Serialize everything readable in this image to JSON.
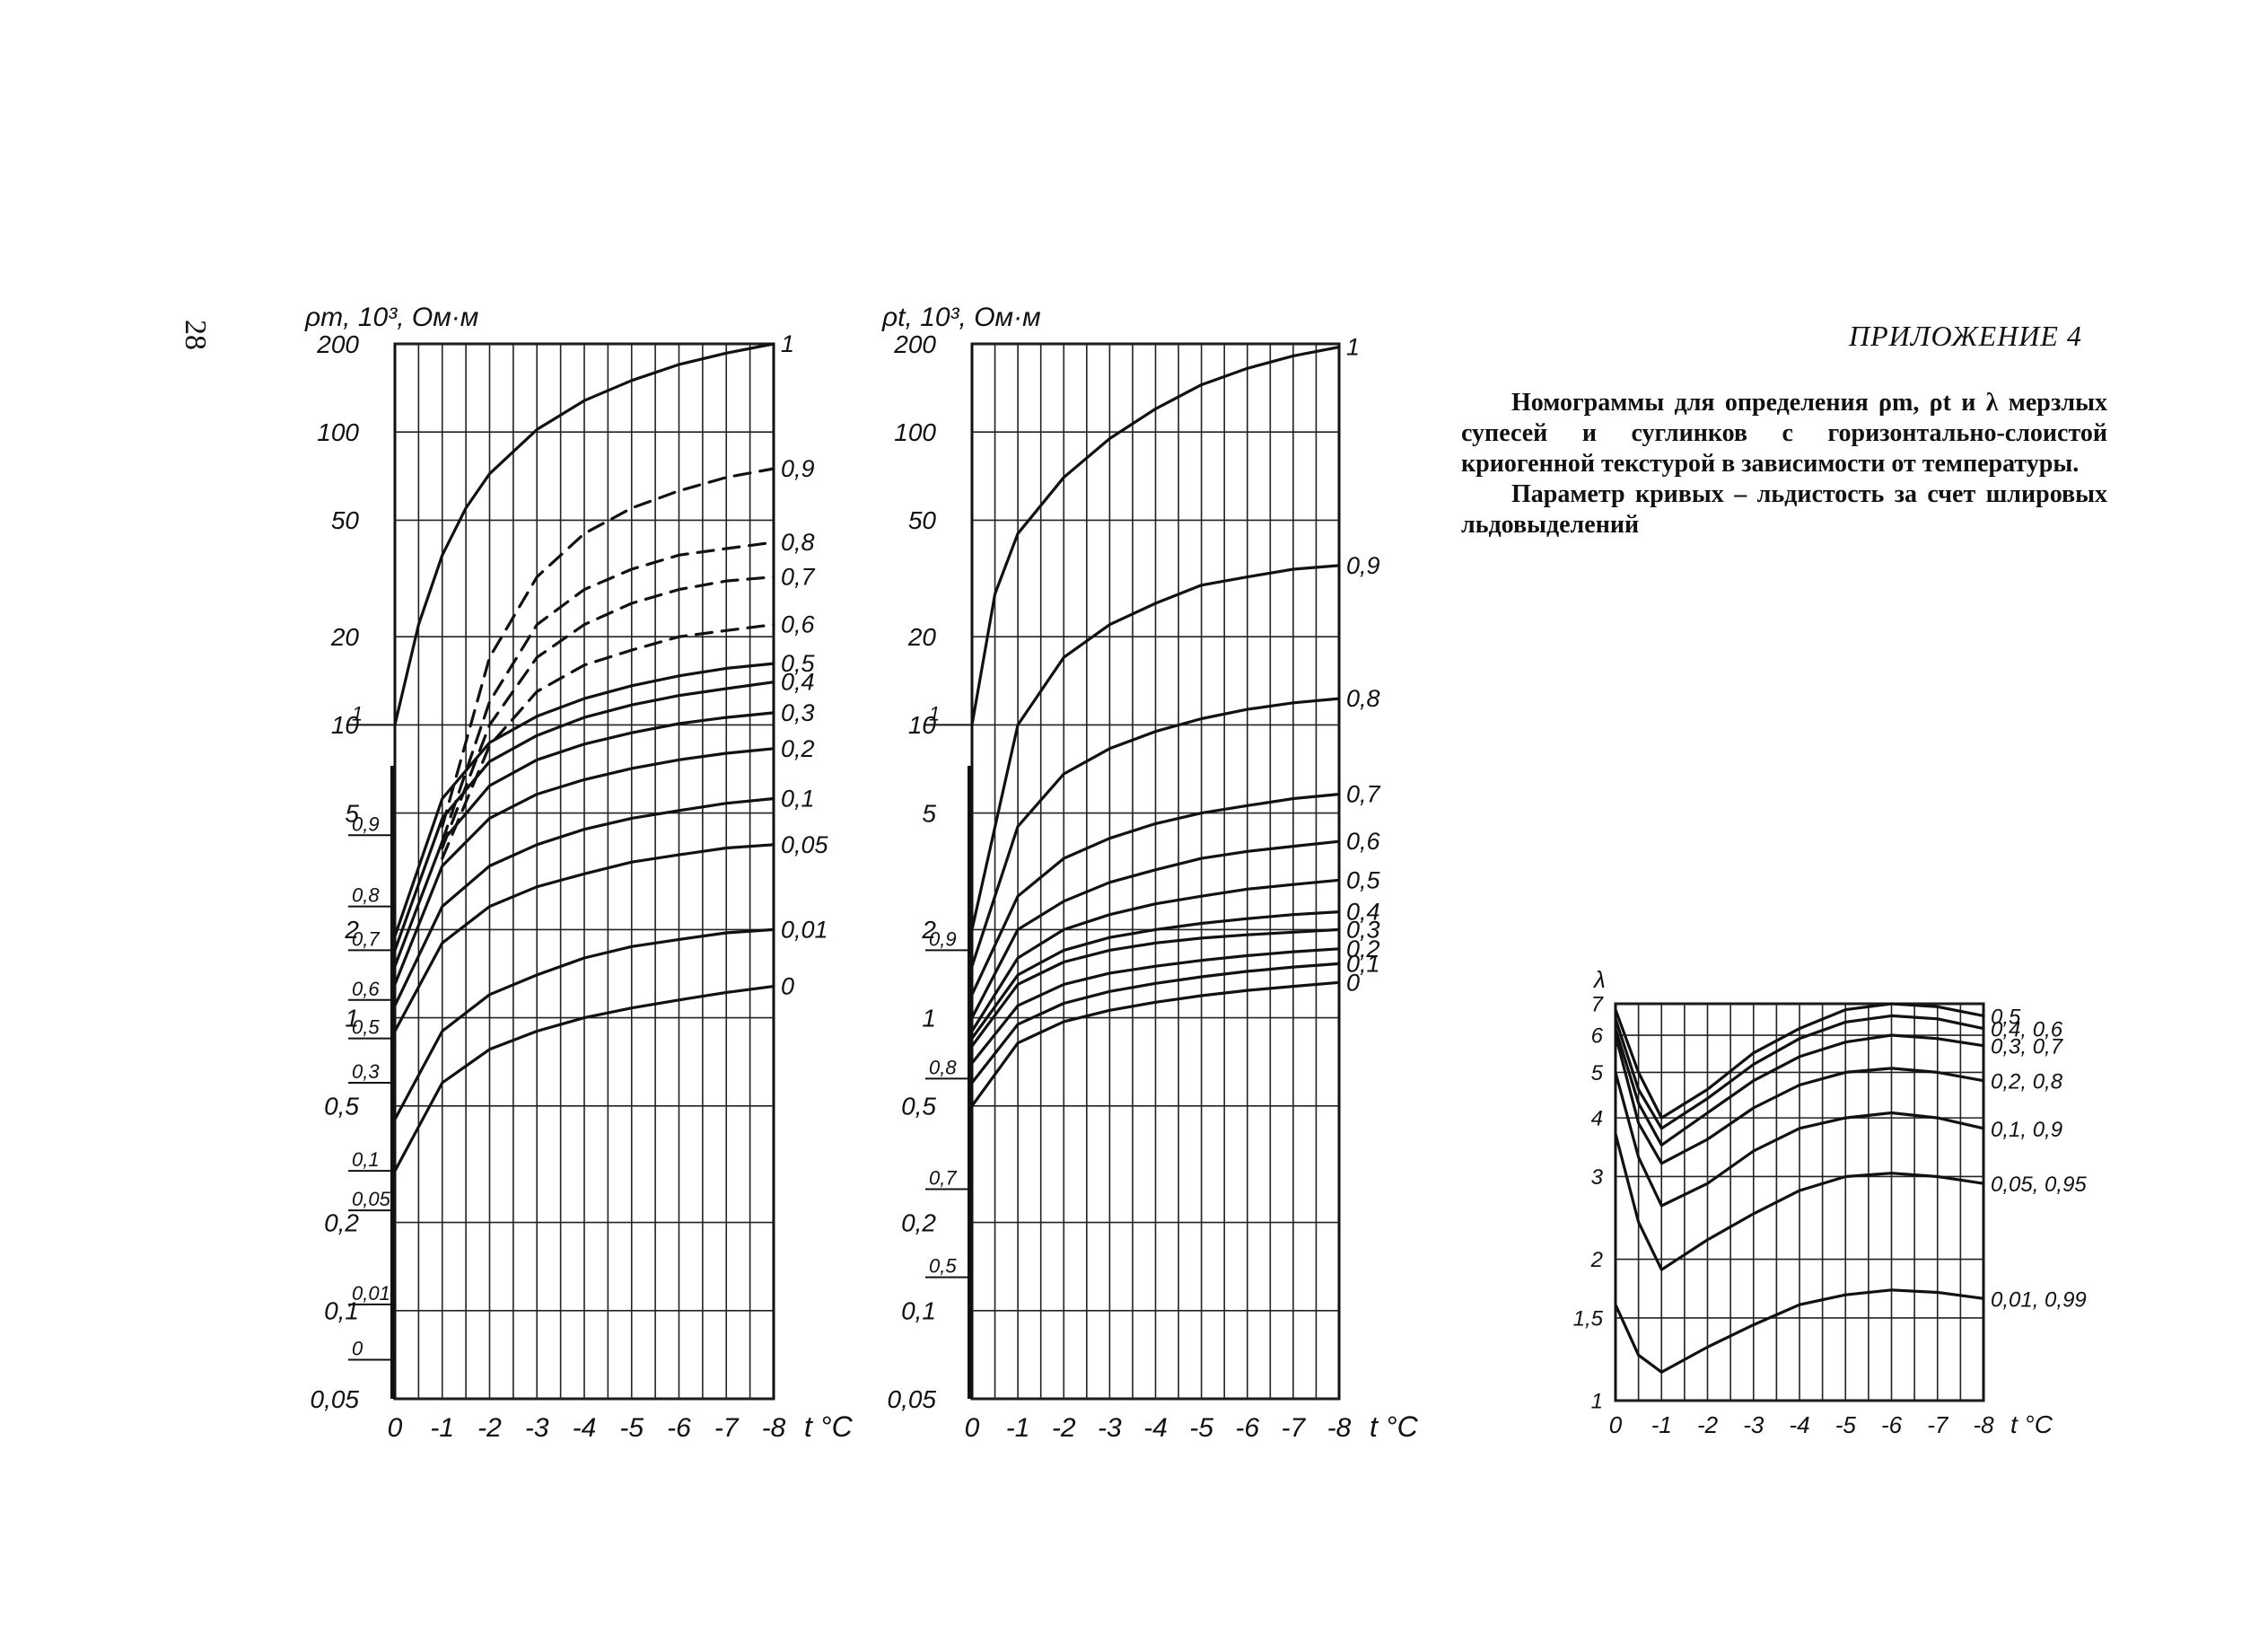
{
  "page_number": "28",
  "appendix_title": "ПРИЛОЖЕНИЕ 4",
  "caption": {
    "paragraph1": "Номограммы для определения ρm, ρt и λ мерзлых супесей и суглинков с горизонтально-слоистой криогенной текстурой в зависимости от температуры.",
    "paragraph2": "Параметр кривых – льдистость за счет шлировых льдовыделений"
  },
  "chart_data": [
    {
      "type": "line",
      "ylabel": "ρm, 10³, Ом·м",
      "xlabel": "t °C",
      "yscale": "log",
      "ylim": [
        0.05,
        200
      ],
      "xlim": [
        0,
        -8
      ],
      "x_ticks": [
        "0",
        "-1",
        "-2",
        "-3",
        "-4",
        "-5",
        "-6",
        "-7",
        "-8"
      ],
      "y_ticks": [
        {
          "v": 200,
          "t": "200"
        },
        {
          "v": 100,
          "t": "100"
        },
        {
          "v": 50,
          "t": "50"
        },
        {
          "v": 20,
          "t": "20"
        },
        {
          "v": 10,
          "t": "10"
        },
        {
          "v": 5,
          "t": "5"
        },
        {
          "v": 2,
          "t": "2"
        },
        {
          "v": 1,
          "t": "1"
        },
        {
          "v": 0.5,
          "t": "0,5"
        },
        {
          "v": 0.2,
          "t": "0,2"
        },
        {
          "v": 0.1,
          "t": "0,1"
        },
        {
          "v": 0.05,
          "t": "0,05"
        }
      ],
      "left_scale": [
        {
          "v": 10,
          "t": "1"
        },
        {
          "v": 4.2,
          "t": "0,9"
        },
        {
          "v": 2.4,
          "t": "0,8"
        },
        {
          "v": 1.7,
          "t": "0,7"
        },
        {
          "v": 1.15,
          "t": "0,6"
        },
        {
          "v": 0.85,
          "t": "0,5"
        },
        {
          "v": 0.6,
          "t": "0,3"
        },
        {
          "v": 0.3,
          "t": "0,1"
        },
        {
          "v": 0.22,
          "t": "0,05"
        },
        {
          "v": 0.105,
          "t": "0,01"
        },
        {
          "v": 0.068,
          "t": "0"
        }
      ],
      "series": [
        {
          "name": "1",
          "dashed": false,
          "x": [
            0,
            -0.5,
            -1,
            -1.5,
            -2,
            -3,
            -4,
            -5,
            -6,
            -7,
            -8
          ],
          "y": [
            10,
            22,
            38,
            55,
            72,
            102,
            128,
            150,
            170,
            186,
            200
          ]
        },
        {
          "name": "0,9",
          "dashed": true,
          "x": [
            -1,
            -2,
            -3,
            -4,
            -5,
            -6,
            -7,
            -8
          ],
          "y": [
            4.5,
            17,
            32,
            45,
            55,
            63,
            70,
            75
          ]
        },
        {
          "name": "0,8",
          "dashed": true,
          "x": [
            -1,
            -2,
            -3,
            -4,
            -5,
            -6,
            -7,
            -8
          ],
          "y": [
            4,
            12,
            22,
            29,
            34,
            38,
            40,
            42
          ]
        },
        {
          "name": "0,7",
          "dashed": true,
          "x": [
            -1,
            -2,
            -3,
            -4,
            -5,
            -6,
            -7,
            -8
          ],
          "y": [
            3.8,
            10,
            17,
            22,
            26,
            29,
            31,
            32
          ]
        },
        {
          "name": "0,6",
          "dashed": true,
          "x": [
            -1,
            -2,
            -3,
            -4,
            -5,
            -6,
            -7,
            -8
          ],
          "y": [
            3.5,
            8.5,
            13,
            16,
            18,
            20,
            21,
            22
          ]
        },
        {
          "name": "0,5",
          "dashed": false,
          "x": [
            0,
            -1,
            -2,
            -3,
            -4,
            -5,
            -6,
            -7,
            -8
          ],
          "y": [
            1.9,
            5.6,
            8.7,
            10.7,
            12.3,
            13.6,
            14.7,
            15.6,
            16.2
          ]
        },
        {
          "name": "0,4",
          "dashed": false,
          "x": [
            0,
            -1,
            -2,
            -3,
            -4,
            -5,
            -6,
            -7,
            -8
          ],
          "y": [
            1.7,
            4.8,
            7.5,
            9.2,
            10.6,
            11.7,
            12.6,
            13.3,
            14
          ]
        },
        {
          "name": "0,3",
          "dashed": false,
          "x": [
            0,
            -1,
            -2,
            -3,
            -4,
            -5,
            -6,
            -7,
            -8
          ],
          "y": [
            1.5,
            4.0,
            6.2,
            7.6,
            8.6,
            9.4,
            10.1,
            10.6,
            11
          ]
        },
        {
          "name": "0,2",
          "dashed": false,
          "x": [
            0,
            -1,
            -2,
            -3,
            -4,
            -5,
            -6,
            -7,
            -8
          ],
          "y": [
            1.3,
            3.3,
            4.8,
            5.8,
            6.5,
            7.1,
            7.6,
            8.0,
            8.3
          ]
        },
        {
          "name": "0,1",
          "dashed": false,
          "x": [
            0,
            -1,
            -2,
            -3,
            -4,
            -5,
            -6,
            -7,
            -8
          ],
          "y": [
            1.1,
            2.4,
            3.3,
            3.9,
            4.4,
            4.8,
            5.1,
            5.4,
            5.6
          ]
        },
        {
          "name": "0,05",
          "dashed": false,
          "x": [
            0,
            -1,
            -2,
            -3,
            -4,
            -5,
            -6,
            -7,
            -8
          ],
          "y": [
            0.9,
            1.8,
            2.4,
            2.8,
            3.1,
            3.4,
            3.6,
            3.8,
            3.9
          ]
        },
        {
          "name": "0,01",
          "dashed": false,
          "x": [
            0,
            -1,
            -2,
            -3,
            -4,
            -5,
            -6,
            -7,
            -8
          ],
          "y": [
            0.45,
            0.9,
            1.2,
            1.4,
            1.6,
            1.75,
            1.85,
            1.95,
            2.0
          ]
        },
        {
          "name": "0",
          "dashed": false,
          "x": [
            0,
            -1,
            -2,
            -3,
            -4,
            -5,
            -6,
            -7,
            -8
          ],
          "y": [
            0.3,
            0.6,
            0.78,
            0.9,
            1.0,
            1.08,
            1.15,
            1.22,
            1.28
          ]
        }
      ]
    },
    {
      "type": "line",
      "ylabel": "ρt, 10³, Ом·м",
      "xlabel": "t °C",
      "yscale": "log",
      "ylim": [
        0.05,
        200
      ],
      "xlim": [
        0,
        -8
      ],
      "x_ticks": [
        "0",
        "-1",
        "-2",
        "-3",
        "-4",
        "-5",
        "-6",
        "-7",
        "-8"
      ],
      "y_ticks": [
        {
          "v": 200,
          "t": "200"
        },
        {
          "v": 100,
          "t": "100"
        },
        {
          "v": 50,
          "t": "50"
        },
        {
          "v": 20,
          "t": "20"
        },
        {
          "v": 10,
          "t": "10"
        },
        {
          "v": 5,
          "t": "5"
        },
        {
          "v": 2,
          "t": "2"
        },
        {
          "v": 1,
          "t": "1"
        },
        {
          "v": 0.5,
          "t": "0,5"
        },
        {
          "v": 0.2,
          "t": "0,2"
        },
        {
          "v": 0.1,
          "t": "0,1"
        },
        {
          "v": 0.05,
          "t": "0,05"
        }
      ],
      "left_scale": [
        {
          "v": 10,
          "t": "1"
        },
        {
          "v": 1.7,
          "t": "0,9"
        },
        {
          "v": 0.62,
          "t": "0,8"
        },
        {
          "v": 0.26,
          "t": "0,7"
        },
        {
          "v": 0.13,
          "t": "0,5"
        }
      ],
      "series": [
        {
          "name": "1",
          "dashed": false,
          "x": [
            0,
            -0.5,
            -1,
            -2,
            -3,
            -4,
            -5,
            -6,
            -7,
            -8
          ],
          "y": [
            10,
            28,
            45,
            70,
            95,
            120,
            145,
            165,
            182,
            195
          ]
        },
        {
          "name": "0,9",
          "dashed": false,
          "x": [
            0,
            -1,
            -2,
            -3,
            -4,
            -5,
            -6,
            -7,
            -8
          ],
          "y": [
            2,
            10,
            17,
            22,
            26,
            30,
            32,
            34,
            35
          ]
        },
        {
          "name": "0,8",
          "dashed": false,
          "x": [
            0,
            -1,
            -2,
            -3,
            -4,
            -5,
            -6,
            -7,
            -8
          ],
          "y": [
            1.5,
            4.5,
            6.8,
            8.3,
            9.5,
            10.5,
            11.3,
            11.9,
            12.3
          ]
        },
        {
          "name": "0,7",
          "dashed": false,
          "x": [
            0,
            -1,
            -2,
            -3,
            -4,
            -5,
            -6,
            -7,
            -8
          ],
          "y": [
            1.2,
            2.6,
            3.5,
            4.1,
            4.6,
            5.0,
            5.3,
            5.6,
            5.8
          ]
        },
        {
          "name": "0,6",
          "dashed": false,
          "x": [
            0,
            -1,
            -2,
            -3,
            -4,
            -5,
            -6,
            -7,
            -8
          ],
          "y": [
            1.0,
            2.0,
            2.5,
            2.9,
            3.2,
            3.5,
            3.7,
            3.85,
            4.0
          ]
        },
        {
          "name": "0,5",
          "dashed": false,
          "x": [
            0,
            -1,
            -2,
            -3,
            -4,
            -5,
            -6,
            -7,
            -8
          ],
          "y": [
            0.9,
            1.6,
            2.0,
            2.25,
            2.45,
            2.6,
            2.75,
            2.85,
            2.95
          ]
        },
        {
          "name": "0,4",
          "dashed": false,
          "x": [
            0,
            -1,
            -2,
            -3,
            -4,
            -5,
            -6,
            -7,
            -8
          ],
          "y": [
            0.85,
            1.4,
            1.7,
            1.88,
            2.0,
            2.1,
            2.18,
            2.25,
            2.3
          ]
        },
        {
          "name": "0,3",
          "dashed": false,
          "x": [
            0,
            -1,
            -2,
            -3,
            -4,
            -5,
            -6,
            -7,
            -8
          ],
          "y": [
            0.8,
            1.3,
            1.55,
            1.7,
            1.8,
            1.87,
            1.92,
            1.96,
            2.0
          ]
        },
        {
          "name": "0,2",
          "dashed": false,
          "x": [
            0,
            -1,
            -2,
            -3,
            -4,
            -5,
            -6,
            -7,
            -8
          ],
          "y": [
            0.7,
            1.1,
            1.3,
            1.42,
            1.5,
            1.57,
            1.63,
            1.68,
            1.72
          ]
        },
        {
          "name": "0,1",
          "dashed": false,
          "x": [
            0,
            -1,
            -2,
            -3,
            -4,
            -5,
            -6,
            -7,
            -8
          ],
          "y": [
            0.6,
            0.95,
            1.12,
            1.23,
            1.31,
            1.38,
            1.44,
            1.49,
            1.53
          ]
        },
        {
          "name": "0",
          "dashed": false,
          "x": [
            0,
            -1,
            -2,
            -3,
            -4,
            -5,
            -6,
            -7,
            -8
          ],
          "y": [
            0.5,
            0.82,
            0.97,
            1.06,
            1.13,
            1.19,
            1.24,
            1.28,
            1.32
          ]
        }
      ]
    },
    {
      "type": "line",
      "ylabel": "λ",
      "xlabel": "t °C",
      "yscale": "log",
      "ylim": [
        1,
        7
      ],
      "xlim": [
        0,
        -8
      ],
      "x_ticks": [
        "0",
        "-1",
        "-2",
        "-3",
        "-4",
        "-5",
        "-6",
        "-7",
        "-8"
      ],
      "y_ticks": [
        {
          "v": 7,
          "t": "7"
        },
        {
          "v": 6,
          "t": "6"
        },
        {
          "v": 5,
          "t": "5"
        },
        {
          "v": 4,
          "t": "4"
        },
        {
          "v": 3,
          "t": "3"
        },
        {
          "v": 2,
          "t": "2"
        },
        {
          "v": 1.5,
          "t": "1,5"
        },
        {
          "v": 1,
          "t": "1"
        }
      ],
      "series": [
        {
          "name": "0,5",
          "dashed": false,
          "x": [
            0,
            -0.5,
            -1,
            -2,
            -3,
            -4,
            -5,
            -6,
            -7,
            -8
          ],
          "y": [
            6.8,
            5.0,
            4.0,
            4.6,
            5.5,
            6.2,
            6.8,
            7.0,
            6.9,
            6.6
          ]
        },
        {
          "name": "0,4, 0,6",
          "dashed": false,
          "x": [
            0,
            -0.5,
            -1,
            -2,
            -3,
            -4,
            -5,
            -6,
            -7,
            -8
          ],
          "y": [
            6.5,
            4.6,
            3.8,
            4.4,
            5.2,
            5.9,
            6.4,
            6.6,
            6.5,
            6.2
          ]
        },
        {
          "name": "0,3, 0,7",
          "dashed": false,
          "x": [
            0,
            -0.5,
            -1,
            -2,
            -3,
            -4,
            -5,
            -6,
            -7,
            -8
          ],
          "y": [
            6.2,
            4.3,
            3.5,
            4.1,
            4.8,
            5.4,
            5.8,
            6.0,
            5.9,
            5.7
          ]
        },
        {
          "name": "0,2, 0,8",
          "dashed": false,
          "x": [
            0,
            -0.5,
            -1,
            -2,
            -3,
            -4,
            -5,
            -6,
            -7,
            -8
          ],
          "y": [
            6.0,
            3.9,
            3.2,
            3.6,
            4.2,
            4.7,
            5.0,
            5.1,
            5.0,
            4.8
          ]
        },
        {
          "name": "0,1, 0,9",
          "dashed": false,
          "x": [
            0,
            -0.5,
            -1,
            -2,
            -3,
            -4,
            -5,
            -6,
            -7,
            -8
          ],
          "y": [
            5.0,
            3.3,
            2.6,
            2.9,
            3.4,
            3.8,
            4.0,
            4.1,
            4.0,
            3.8
          ]
        },
        {
          "name": "0,05, 0,95",
          "dashed": false,
          "x": [
            0,
            -0.5,
            -1,
            -2,
            -3,
            -4,
            -5,
            -6,
            -7,
            -8
          ],
          "y": [
            3.7,
            2.4,
            1.9,
            2.2,
            2.5,
            2.8,
            3.0,
            3.05,
            3.0,
            2.9
          ]
        },
        {
          "name": "0,01, 0,99",
          "dashed": false,
          "x": [
            0,
            -0.5,
            -1,
            -2,
            -3,
            -4,
            -5,
            -6,
            -7,
            -8
          ],
          "y": [
            1.6,
            1.25,
            1.15,
            1.3,
            1.45,
            1.6,
            1.68,
            1.72,
            1.7,
            1.65
          ]
        }
      ]
    }
  ]
}
